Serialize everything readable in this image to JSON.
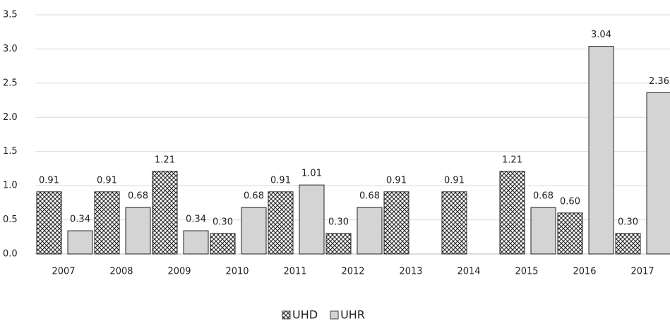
{
  "chart_data": {
    "type": "bar",
    "categories": [
      "2007",
      "2008",
      "2009",
      "2010",
      "2011",
      "2012",
      "2013",
      "2014",
      "2015",
      "2016",
      "2017"
    ],
    "series": [
      {
        "name": "UHD",
        "color": "#222222",
        "pattern": "crosshatch",
        "values": [
          0.91,
          0.91,
          1.21,
          0.3,
          0.91,
          0.3,
          0.91,
          0.91,
          1.21,
          0.6,
          0.3
        ],
        "value_labels": [
          "0.91",
          "0.91",
          "1.21",
          "0.30",
          "0.91",
          "0.30",
          "0.91",
          "0.91",
          "1.21",
          "0.60",
          "0.30"
        ]
      },
      {
        "name": "UHR",
        "color": "#d4d4d4",
        "values": [
          0.34,
          0.68,
          0.34,
          0.68,
          1.01,
          0.68,
          null,
          null,
          0.68,
          3.04,
          2.36
        ],
        "value_labels": [
          "0.34",
          "0.68",
          "0.34",
          "0.68",
          "1.01",
          "0.68",
          null,
          null,
          "0.68",
          "3.04",
          "2.36"
        ]
      }
    ],
    "ylim": [
      0,
      3.5
    ],
    "yticks": [
      {
        "value": 0,
        "label": "0.0"
      },
      {
        "value": 0.5,
        "label": "0.5"
      },
      {
        "value": 1,
        "label": "1.0"
      },
      {
        "value": 1.5,
        "label": "1.5"
      },
      {
        "value": 2,
        "label": "2.0"
      },
      {
        "value": 2.5,
        "label": "2.5"
      },
      {
        "value": 3,
        "label": "3.0"
      },
      {
        "value": 3.5,
        "label": "3.5"
      }
    ],
    "grid": true,
    "legend": "bottom"
  }
}
